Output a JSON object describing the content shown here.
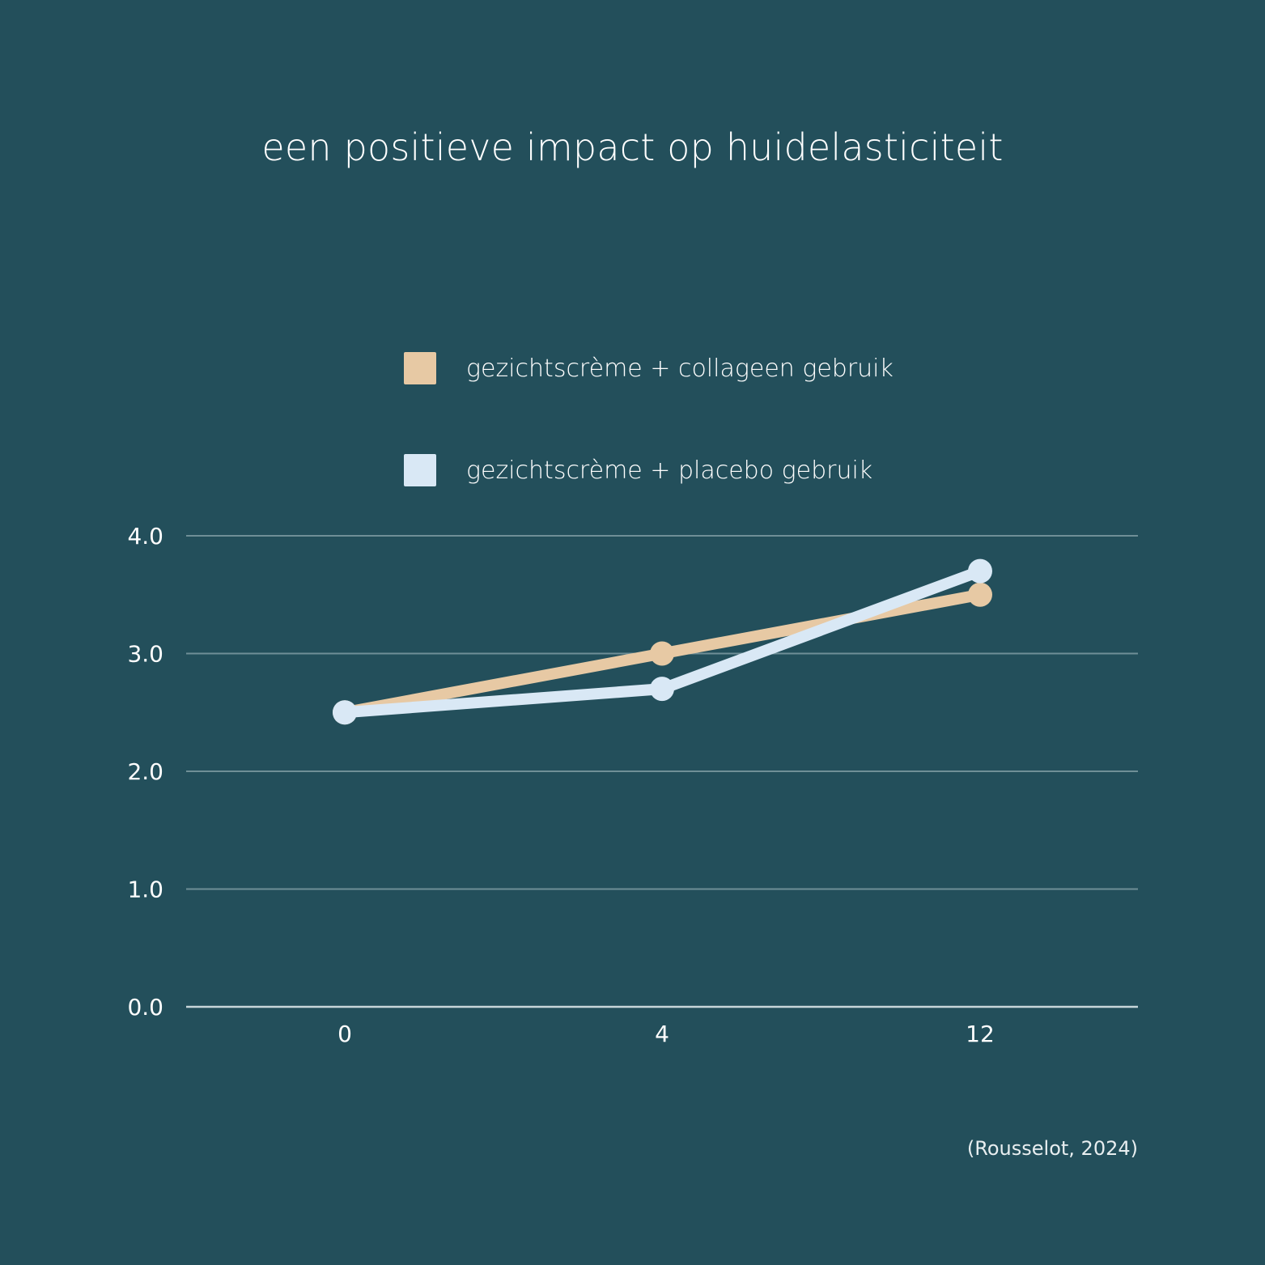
{
  "chart_data": {
    "type": "line",
    "title": "een positieve impact op huidelasticiteit",
    "categories": [
      "0",
      "4",
      "12"
    ],
    "series": [
      {
        "name": "gezichtscrème + collageen gebruik",
        "color": "#e7c9a4",
        "values": [
          2.5,
          3.0,
          3.5
        ]
      },
      {
        "name": "gezichtscrème + placebo gebruik",
        "color": "#d9e8f5",
        "values": [
          2.5,
          2.7,
          3.7
        ]
      }
    ],
    "y_ticks": [
      "0.0",
      "1.0",
      "2.0",
      "3.0",
      "4.0"
    ],
    "ylim": [
      0,
      4
    ],
    "grid": true,
    "legend_position": "top",
    "source": "(Rousselot, 2024)"
  }
}
